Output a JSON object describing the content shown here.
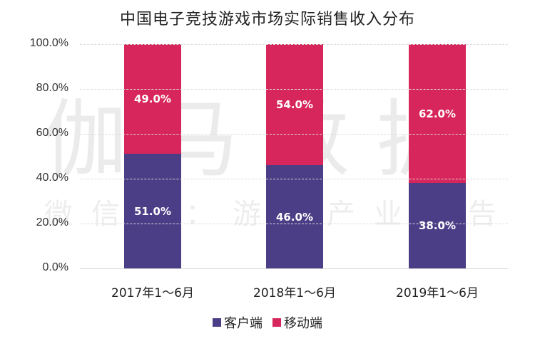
{
  "chart_data": {
    "type": "bar",
    "stacked": true,
    "title": "中国电子竞技游戏市场实际销售收入分布",
    "categories": [
      "2017年1～6月",
      "2018年1～6月",
      "2019年1～6月"
    ],
    "series": [
      {
        "name": "客户端",
        "values": [
          51.0,
          46.0,
          38.0
        ],
        "labels": [
          "51.0%",
          "46.0%",
          "38.0%"
        ],
        "color": "#4b3d86"
      },
      {
        "name": "移动端",
        "values": [
          49.0,
          54.0,
          62.0
        ],
        "labels": [
          "49.0%",
          "54.0%",
          "62.0%"
        ],
        "color": "#d7265b"
      }
    ],
    "xlabel": "",
    "ylabel": "",
    "ylim": [
      0,
      100
    ],
    "yticks": [
      "0.0%",
      "20.0%",
      "40.0%",
      "60.0%",
      "80.0%",
      "100.0%"
    ],
    "grid": true,
    "legend_position": "bottom"
  },
  "watermark": {
    "line1": "伽马数据",
    "line2": "微信号：游戏产业报告"
  }
}
